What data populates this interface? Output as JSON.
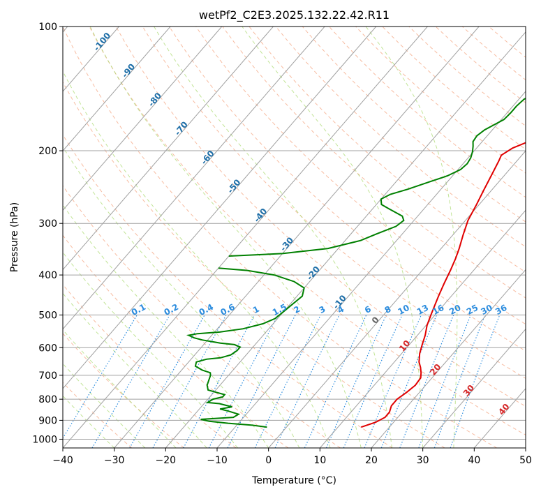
{
  "chart_data": {
    "type": "line",
    "title": "wetPf2_C2E3.2025.132.22.42.R11",
    "xlabel": "Temperature (°C)",
    "ylabel": "Pressure (hPa)",
    "xlim": [
      -40,
      50
    ],
    "ylim": [
      1050,
      100
    ],
    "y_scale": "log",
    "grid": true,
    "x_ticks": [
      "−40",
      "−30",
      "−20",
      "−10",
      "0",
      "10",
      "20",
      "30",
      "40",
      "50"
    ],
    "y_ticks": [
      "100",
      "200",
      "300",
      "400",
      "500",
      "600",
      "700",
      "800",
      "900",
      "1000"
    ],
    "isotherm_labels": [
      "-100",
      "-90",
      "-80",
      "-70",
      "-60",
      "-50",
      "-40",
      "-30",
      "-20",
      "-10",
      "0",
      "10",
      "20",
      "30",
      "40"
    ],
    "mixing_ratio_labels": [
      "0.1",
      "0.2",
      "0.4",
      "0.6",
      "1",
      "1.5",
      "2",
      "3",
      "4",
      "6",
      "8",
      "10",
      "13",
      "16",
      "20",
      "25",
      "30",
      "36"
    ],
    "series": [
      {
        "role": "temperature",
        "color": "#e00000",
        "points": [
          [
            14.5,
            935
          ],
          [
            16.5,
            910
          ],
          [
            17.5,
            885
          ],
          [
            17.5,
            860
          ],
          [
            16.8,
            830
          ],
          [
            16.8,
            800
          ],
          [
            17.5,
            770
          ],
          [
            18,
            740
          ],
          [
            17.8,
            710
          ],
          [
            17,
            690
          ],
          [
            16,
            670
          ],
          [
            14.8,
            650
          ],
          [
            13.5,
            620
          ],
          [
            12.5,
            590
          ],
          [
            11.5,
            560
          ],
          [
            10.2,
            530
          ],
          [
            9.2,
            500
          ],
          [
            8.2,
            470
          ],
          [
            7.5,
            450
          ],
          [
            6.5,
            420
          ],
          [
            5.5,
            390
          ],
          [
            4.5,
            365
          ],
          [
            3.5,
            345
          ],
          [
            2,
            320
          ],
          [
            0.5,
            295
          ],
          [
            -0.5,
            270
          ],
          [
            -1.5,
            250
          ],
          [
            -2.5,
            230
          ],
          [
            -3.5,
            212
          ],
          [
            -4,
            205
          ],
          [
            -3,
            197
          ],
          [
            -1,
            190
          ],
          [
            1.5,
            184
          ],
          [
            3.5,
            178
          ],
          [
            4.5,
            172
          ],
          [
            5,
            165
          ],
          [
            5.8,
            158
          ],
          [
            7,
            152
          ],
          [
            9,
            143
          ],
          [
            11,
            136
          ],
          [
            13,
            131
          ],
          [
            15.5,
            126
          ],
          [
            17.5,
            121
          ],
          [
            19.5,
            116
          ],
          [
            20.5,
            112
          ],
          [
            21.5,
            107
          ],
          [
            22.5,
            100
          ]
        ]
      },
      {
        "role": "dewpoint",
        "color": "#008000",
        "points": [
          [
            -3.8,
            935
          ],
          [
            -7,
            925
          ],
          [
            -12,
            915
          ],
          [
            -16,
            905
          ],
          [
            -18,
            895
          ],
          [
            -12,
            885
          ],
          [
            -11.5,
            870
          ],
          [
            -14,
            855
          ],
          [
            -16,
            845
          ],
          [
            -14,
            835
          ],
          [
            -17,
            820
          ],
          [
            -19.5,
            815
          ],
          [
            -19,
            800
          ],
          [
            -17.5,
            790
          ],
          [
            -17.5,
            780
          ],
          [
            -19.5,
            770
          ],
          [
            -21.5,
            760
          ],
          [
            -22.5,
            740
          ],
          [
            -23,
            720
          ],
          [
            -23.5,
            700
          ],
          [
            -24,
            690
          ],
          [
            -26,
            680
          ],
          [
            -28,
            665
          ],
          [
            -28.5,
            650
          ],
          [
            -27,
            640
          ],
          [
            -24.5,
            635
          ],
          [
            -23,
            625
          ],
          [
            -22.5,
            610
          ],
          [
            -22.5,
            598
          ],
          [
            -24,
            590
          ],
          [
            -27,
            585
          ],
          [
            -29,
            580
          ],
          [
            -31,
            575
          ],
          [
            -33,
            568
          ],
          [
            -34.5,
            560
          ],
          [
            -33,
            555
          ],
          [
            -29,
            550
          ],
          [
            -25,
            540
          ],
          [
            -22,
            525
          ],
          [
            -20.5,
            510
          ],
          [
            -20,
            490
          ],
          [
            -19.5,
            470
          ],
          [
            -19,
            450
          ],
          [
            -20,
            430
          ],
          [
            -23,
            415
          ],
          [
            -28,
            400
          ],
          [
            -34,
            390
          ],
          [
            -40,
            385
          ]
        ]
      },
      {
        "role": "dewpoint_upper",
        "color": "#008000",
        "points": [
          [
            -40,
            360
          ],
          [
            -30,
            355
          ],
          [
            -22,
            345
          ],
          [
            -17,
            330
          ],
          [
            -15,
            318
          ],
          [
            -12.5,
            305
          ],
          [
            -12,
            295
          ],
          [
            -13,
            288
          ],
          [
            -15,
            282
          ],
          [
            -17,
            276
          ],
          [
            -19,
            270
          ],
          [
            -20,
            262
          ],
          [
            -19,
            255
          ],
          [
            -16.5,
            248
          ],
          [
            -13.5,
            238
          ],
          [
            -11,
            230
          ],
          [
            -9.5,
            222
          ],
          [
            -9.2,
            215
          ],
          [
            -9.5,
            208
          ],
          [
            -10.2,
            201
          ],
          [
            -11,
            195
          ],
          [
            -11.8,
            190
          ],
          [
            -12,
            184
          ],
          [
            -11.5,
            178
          ],
          [
            -10.5,
            173
          ],
          [
            -9.5,
            168
          ],
          [
            -9.3,
            162
          ],
          [
            -9.3,
            156
          ],
          [
            -9,
            150
          ],
          [
            -8,
            146
          ],
          [
            -6.5,
            143
          ],
          [
            -5.8,
            138
          ],
          [
            -5.5,
            130
          ],
          [
            -5,
            125
          ],
          [
            -4.5,
            120
          ],
          [
            -3.5,
            116
          ],
          [
            -2,
            112
          ],
          [
            -0.5,
            108
          ],
          [
            0.5,
            104
          ],
          [
            1.5,
            100
          ]
        ]
      }
    ]
  }
}
